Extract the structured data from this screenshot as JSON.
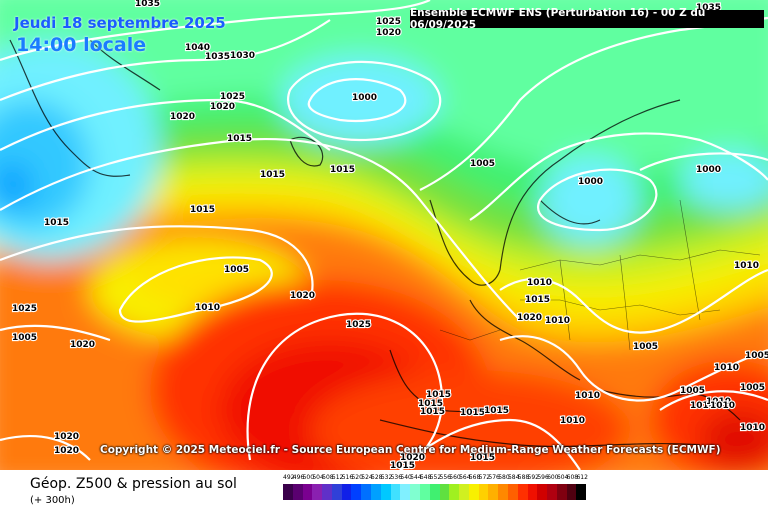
{
  "header": {
    "date": "Jeudi 18 septembre 2025",
    "time": "14:00 locale",
    "run": "Ensemble ECMWF ENS  (Perturbation 16)  -  00 Z du 06/09/2025"
  },
  "copyright": "Copyright © 2025 Meteociel.fr - Source European Centre for Medium-Range Weather Forecasts (ECMWF)",
  "footer": {
    "parameter": "Géop. Z500 & pression au sol",
    "lead": "(+ 300h)"
  },
  "legend": {
    "values": [
      "492",
      "496",
      "500",
      "504",
      "508",
      "512",
      "516",
      "520",
      "524",
      "528",
      "532",
      "536",
      "540",
      "544",
      "548",
      "552",
      "556",
      "560",
      "564",
      "568",
      "572",
      "576",
      "580",
      "584",
      "588",
      "592",
      "596",
      "600",
      "604",
      "608",
      "612"
    ],
    "colors": [
      "#3a004a",
      "#5a0070",
      "#7a0090",
      "#8a20b0",
      "#6030c8",
      "#3040d8",
      "#1020e8",
      "#0040ff",
      "#0070ff",
      "#00a0ff",
      "#00c8ff",
      "#40e0ff",
      "#80f0ff",
      "#80ffd0",
      "#60ffa0",
      "#40f070",
      "#60e040",
      "#a0f020",
      "#d0f020",
      "#f8f000",
      "#ffd000",
      "#ffb000",
      "#ff8800",
      "#ff6000",
      "#ff3000",
      "#f01000",
      "#d00000",
      "#b00010",
      "#800010",
      "#500010",
      "#000000"
    ]
  },
  "isobars": [
    "1035",
    "1025",
    "1020",
    "1040",
    "1035",
    "1030",
    "1025",
    "1020",
    "1020",
    "1000",
    "1015",
    "1015",
    "1015",
    "1005",
    "1000",
    "1000",
    "1015",
    "1015",
    "1005",
    "1010",
    "1010",
    "1020",
    "1025",
    "1025",
    "1020",
    "1010",
    "1015",
    "1020",
    "1010",
    "1005",
    "1005",
    "1010",
    "1015",
    "1015",
    "1015",
    "1015",
    "1015",
    "1010",
    "1005",
    "1010",
    "1010",
    "1005",
    "1010",
    "1020",
    "1020",
    "1020",
    "1015",
    "1015",
    "1010",
    "1035",
    "1010",
    "1005"
  ]
}
